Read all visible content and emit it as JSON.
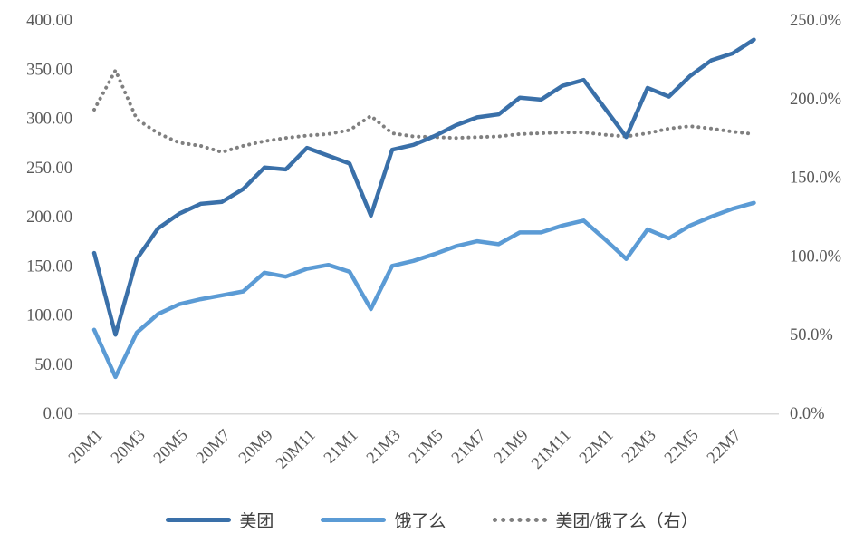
{
  "chart_data": {
    "type": "line",
    "title": "",
    "x": [
      "20M1",
      "20M2",
      "20M3",
      "20M4",
      "20M5",
      "20M6",
      "20M7",
      "20M8",
      "20M9",
      "20M10",
      "20M11",
      "20M12",
      "21M1",
      "21M2",
      "21M3",
      "21M4",
      "21M5",
      "21M6",
      "21M7",
      "21M8",
      "21M9",
      "21M10",
      "21M11",
      "21M12",
      "22M1",
      "22M2",
      "22M3",
      "22M4",
      "22M5",
      "22M6",
      "22M7",
      "22M8"
    ],
    "x_tick_labels": [
      "20M1",
      "20M3",
      "20M5",
      "20M7",
      "20M9",
      "20M11",
      "21M1",
      "21M3",
      "21M5",
      "21M7",
      "21M9",
      "21M11",
      "22M1",
      "22M3",
      "22M5",
      "22M7"
    ],
    "x_tick_step": 2,
    "left_axis": {
      "min": 0,
      "max": 400,
      "step": 50,
      "ticks": [
        "0.00",
        "50.00",
        "100.00",
        "150.00",
        "200.00",
        "250.00",
        "300.00",
        "350.00",
        "400.00"
      ]
    },
    "right_axis": {
      "min": 0,
      "max": 250,
      "step": 50,
      "ticks": [
        "0.0%",
        "50.0%",
        "100.0%",
        "150.0%",
        "200.0%",
        "250.0%"
      ]
    },
    "grid": false,
    "legend_position": "bottom",
    "series": [
      {
        "name": "美团",
        "axis": "left",
        "style": "solid",
        "color": "#3A70A9",
        "values": [
          163,
          80,
          157,
          188,
          203,
          213,
          215,
          228,
          250,
          248,
          270,
          262,
          254,
          201,
          268,
          273,
          282,
          293,
          301,
          304,
          321,
          319,
          333,
          339,
          310,
          281,
          331,
          322,
          343,
          359,
          366,
          380
        ]
      },
      {
        "name": "饿了么",
        "axis": "left",
        "style": "solid",
        "color": "#5B9BD5",
        "values": [
          85,
          37,
          82,
          101,
          111,
          116,
          120,
          124,
          143,
          139,
          147,
          151,
          144,
          106,
          150,
          155,
          162,
          170,
          175,
          172,
          184,
          184,
          191,
          196,
          177,
          157,
          187,
          178,
          191,
          200,
          208,
          214
        ]
      },
      {
        "name": "美团/饿了么（右）",
        "axis": "right",
        "style": "dotted",
        "color": "#808080",
        "values": [
          193,
          218,
          187,
          178,
          172,
          170,
          166,
          170,
          173,
          175,
          176.5,
          177.5,
          180,
          189,
          178,
          176,
          175.5,
          175,
          175.5,
          176,
          177.5,
          178,
          178.5,
          178.5,
          177,
          176,
          178,
          181,
          182.5,
          181,
          179,
          177.5
        ]
      }
    ],
    "colors": {
      "axis_text": "#595959",
      "axis_line": "#D9D9D9"
    }
  }
}
